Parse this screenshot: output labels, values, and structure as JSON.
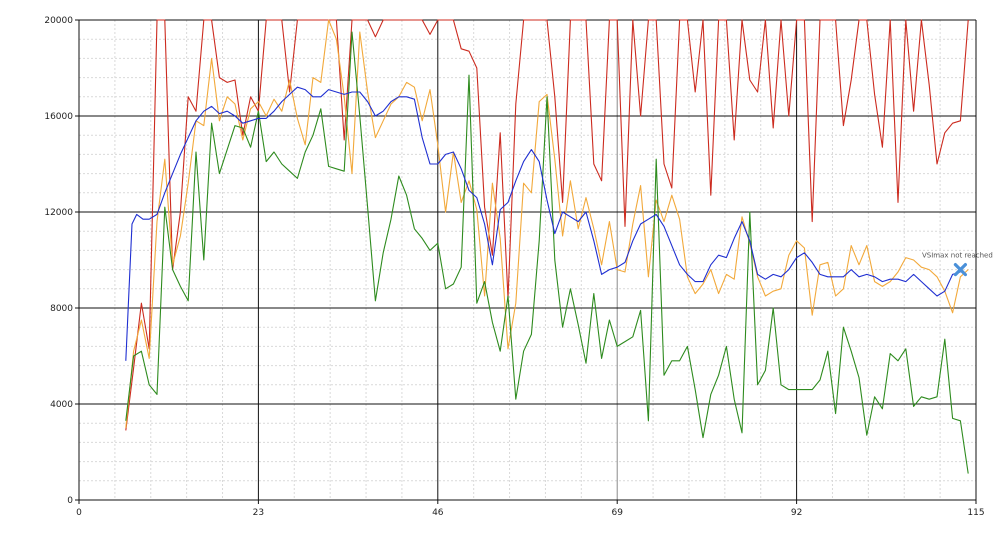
{
  "chart_data": {
    "type": "line",
    "title": "",
    "xlabel": "",
    "ylabel": "",
    "xlim": [
      0,
      115
    ],
    "ylim": [
      0,
      20000
    ],
    "x_ticks": [
      "0",
      "23",
      "46",
      "69",
      "92",
      "115"
    ],
    "y_ticks": [
      "0",
      "4000",
      "8000",
      "12000",
      "16000",
      "20000"
    ],
    "grid": true,
    "legend": "none",
    "colors": {
      "red": "#cc2b1f",
      "orange": "#f2a93b",
      "blue": "#1f2fd1",
      "green": "#2e8b1e",
      "marker": "#4a90d9"
    },
    "series": [
      {
        "color": "#cc2b1f",
        "x": [
          6,
          7,
          8,
          9,
          10,
          11,
          12,
          13,
          14,
          15,
          16,
          17,
          18,
          19,
          20,
          21,
          22,
          23,
          24,
          25,
          26,
          27,
          28,
          29,
          30,
          31,
          32,
          33,
          34,
          35,
          36,
          37,
          38,
          39,
          40,
          41,
          42,
          43,
          44,
          45,
          46,
          47,
          48,
          49,
          50,
          51,
          52,
          53,
          54,
          55,
          56,
          57,
          58,
          59,
          60,
          61,
          62,
          63,
          64,
          65,
          66,
          67,
          68,
          69,
          70,
          71,
          72,
          73,
          74,
          75,
          76,
          77,
          78,
          79,
          80,
          81,
          82,
          83,
          84,
          85,
          86,
          87,
          88,
          89,
          90,
          91,
          92,
          93,
          94,
          95,
          96,
          97,
          98,
          99,
          100,
          101,
          102,
          103,
          104,
          105,
          106,
          107,
          108,
          109,
          110,
          111,
          112,
          113,
          114
        ],
        "y": [
          2900,
          5500,
          8200,
          6300,
          20000,
          20000,
          9600,
          12000,
          16800,
          16200,
          20000,
          20000,
          17600,
          17400,
          17500,
          15200,
          16800,
          16200,
          20000,
          20000,
          20000,
          17000,
          20000,
          20000,
          20000,
          20000,
          20000,
          20000,
          15000,
          20000,
          20000,
          20000,
          19300,
          20000,
          20000,
          20000,
          20000,
          20000,
          20000,
          19400,
          20000,
          20000,
          20000,
          18800,
          18700,
          18000,
          12200,
          10200,
          15300,
          8400,
          16500,
          20000,
          20000,
          20000,
          20000,
          16800,
          12400,
          20000,
          20000,
          20000,
          14000,
          13300,
          20000,
          20000,
          11400,
          20000,
          16000,
          20000,
          20000,
          14000,
          13000,
          20000,
          20000,
          17000,
          20000,
          12700,
          20000,
          20000,
          15000,
          20000,
          17500,
          17000,
          20000,
          15500,
          20000,
          16000,
          20000,
          20000,
          11600,
          20000,
          20000,
          20000,
          15600,
          17500,
          20000,
          20000,
          16900,
          14700,
          20000,
          12400,
          20000,
          16200,
          20000,
          17300,
          14000,
          15300,
          15700,
          15800,
          20000
        ]
      },
      {
        "color": "#f2a93b",
        "x": [
          6,
          7,
          8,
          9,
          10,
          11,
          12,
          13,
          14,
          15,
          16,
          17,
          18,
          19,
          20,
          21,
          22,
          23,
          24,
          25,
          26,
          27,
          28,
          29,
          30,
          31,
          32,
          33,
          34,
          35,
          36,
          37,
          38,
          39,
          40,
          41,
          42,
          43,
          44,
          45,
          46,
          47,
          48,
          49,
          50,
          51,
          52,
          53,
          54,
          55,
          56,
          57,
          58,
          59,
          60,
          61,
          62,
          63,
          64,
          65,
          66,
          67,
          68,
          69,
          70,
          71,
          72,
          73,
          74,
          75,
          76,
          77,
          78,
          79,
          80,
          81,
          82,
          83,
          84,
          85,
          86,
          87,
          88,
          89,
          90,
          91,
          92,
          93,
          94,
          95,
          96,
          97,
          98,
          99,
          100,
          101,
          102,
          103,
          104,
          105,
          106,
          107,
          108,
          109,
          110,
          111,
          112,
          113,
          114
        ],
        "y": [
          3000,
          6200,
          7500,
          5900,
          11600,
          14200,
          9800,
          11000,
          13200,
          15800,
          15600,
          18400,
          15800,
          16800,
          16500,
          15000,
          16300,
          16600,
          16000,
          16700,
          16200,
          17500,
          15900,
          14800,
          17600,
          17400,
          20000,
          19200,
          16800,
          13600,
          19500,
          17000,
          15100,
          15800,
          16500,
          16800,
          17400,
          17200,
          15800,
          17100,
          14800,
          12000,
          14500,
          12400,
          13300,
          12100,
          8500,
          13200,
          10900,
          6300,
          8200,
          13200,
          12800,
          16600,
          16900,
          14200,
          11000,
          13300,
          11300,
          12600,
          11300,
          9800,
          11600,
          9600,
          9500,
          11500,
          13100,
          9300,
          12500,
          11600,
          12700,
          11700,
          9300,
          8600,
          9000,
          9600,
          8600,
          9400,
          9200,
          11800,
          10700,
          9300,
          8500,
          8700,
          8800,
          10200,
          10800,
          10500,
          7700,
          9800,
          9900,
          8500,
          8800,
          10600,
          9800,
          10600,
          9100,
          8900,
          9100,
          9500,
          10100,
          10000,
          9700,
          9600,
          9300,
          8700,
          7800,
          9300,
          9600
        ]
      },
      {
        "color": "#2e8b1e",
        "x": [
          6,
          7,
          8,
          9,
          10,
          11,
          12,
          13,
          14,
          15,
          16,
          17,
          18,
          19,
          20,
          21,
          22,
          23,
          24,
          25,
          26,
          27,
          28,
          29,
          30,
          31,
          32,
          33,
          34,
          35,
          36,
          37,
          38,
          39,
          40,
          41,
          42,
          43,
          44,
          45,
          46,
          47,
          48,
          49,
          50,
          51,
          52,
          53,
          54,
          55,
          56,
          57,
          58,
          59,
          60,
          61,
          62,
          63,
          64,
          65,
          66,
          67,
          68,
          69,
          70,
          71,
          72,
          73,
          74,
          75,
          76,
          77,
          78,
          79,
          80,
          81,
          82,
          83,
          84,
          85,
          86,
          87,
          88,
          89,
          90,
          91,
          92,
          93,
          94,
          95,
          96,
          97,
          98,
          99,
          100,
          101,
          102,
          103,
          104,
          105,
          106,
          107,
          108,
          109,
          110,
          111,
          112,
          113,
          114
        ],
        "y": [
          3300,
          6000,
          6200,
          4800,
          4400,
          12200,
          9600,
          8900,
          8300,
          14500,
          10000,
          15700,
          13600,
          14600,
          15600,
          15500,
          14700,
          16200,
          14100,
          14500,
          14000,
          13700,
          13400,
          14500,
          15200,
          16300,
          13900,
          13800,
          13700,
          19500,
          16000,
          12200,
          8300,
          10300,
          11700,
          13500,
          12700,
          11300,
          10900,
          10400,
          10700,
          8800,
          9000,
          9700,
          17700,
          8200,
          9100,
          7400,
          6200,
          8500,
          4200,
          6200,
          6900,
          10800,
          16800,
          10000,
          7200,
          8800,
          7300,
          5700,
          8600,
          5900,
          7500,
          6400,
          6600,
          6800,
          7900,
          3300,
          14200,
          5200,
          5800,
          5800,
          6400,
          4600,
          2600,
          4400,
          5200,
          6400,
          4200,
          2800,
          12000,
          4800,
          5400,
          8000,
          4800,
          4600,
          4600,
          4600,
          4600,
          5000,
          6200,
          3600,
          7200,
          6200,
          5100,
          2700,
          4300,
          3800,
          6100,
          5800,
          6300,
          3900,
          4300,
          4200,
          4300,
          6700,
          3400,
          3300,
          1100
        ]
      },
      {
        "color": "#1f2fd1",
        "x": [
          6,
          6.8,
          7.4,
          8.2,
          9,
          10,
          11,
          12,
          13,
          14,
          15,
          16,
          17,
          18,
          19,
          20,
          21,
          22,
          23,
          24,
          25,
          26,
          27,
          28,
          29,
          30,
          31,
          32,
          33,
          34,
          35,
          36,
          37,
          38,
          39,
          40,
          41,
          42,
          43,
          44,
          45,
          46,
          47,
          48,
          49,
          50,
          51,
          52,
          53,
          54,
          55,
          56,
          57,
          58,
          59,
          60,
          61,
          62,
          63,
          64,
          65,
          66,
          67,
          68,
          69,
          70,
          71,
          72,
          73,
          74,
          75,
          76,
          77,
          78,
          79,
          80,
          81,
          82,
          83,
          84,
          85,
          86,
          87,
          88,
          89,
          90,
          91,
          92,
          93,
          94,
          95,
          96,
          97,
          98,
          99,
          100,
          101,
          102,
          103,
          104,
          105,
          106,
          107,
          108,
          109,
          110,
          111,
          112,
          113
        ],
        "y": [
          5800,
          11500,
          11900,
          11700,
          11700,
          11900,
          12800,
          13600,
          14400,
          15100,
          15800,
          16200,
          16400,
          16100,
          16200,
          16000,
          15700,
          15800,
          15900,
          15900,
          16200,
          16600,
          16900,
          17200,
          17100,
          16800,
          16800,
          17100,
          17000,
          16900,
          17000,
          17000,
          16600,
          16000,
          16200,
          16600,
          16800,
          16800,
          16700,
          15100,
          14000,
          14000,
          14400,
          14500,
          13800,
          12900,
          12600,
          11500,
          9800,
          12100,
          12400,
          13300,
          14100,
          14600,
          14100,
          12500,
          11100,
          12000,
          11800,
          11600,
          12000,
          10800,
          9400,
          9600,
          9700,
          9900,
          10800,
          11500,
          11700,
          11900,
          11400,
          10600,
          9800,
          9400,
          9100,
          9100,
          9800,
          10200,
          10100,
          10900,
          11600,
          10800,
          9400,
          9200,
          9400,
          9300,
          9600,
          10100,
          10300,
          9900,
          9400,
          9300,
          9300,
          9300,
          9600,
          9300,
          9400,
          9300,
          9100,
          9200,
          9200,
          9100,
          9400,
          9100,
          8800,
          8500,
          8700,
          9400,
          9500
        ]
      }
    ],
    "annotations": [
      {
        "text": "VSImax not reached",
        "x": 113,
        "y": 9600
      }
    ]
  }
}
